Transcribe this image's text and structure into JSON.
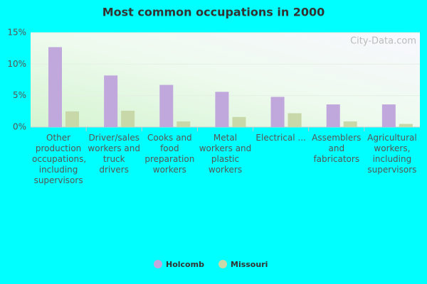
{
  "chart_data": {
    "type": "bar",
    "title": "Most common occupations in 2000",
    "watermark": "City-Data.com",
    "categories": [
      "Other production occupations, including supervisors",
      "Driver/sales workers and truck drivers",
      "Cooks and food preparation workers",
      "Metal workers and plastic workers",
      "Electrical ...",
      "Assemblers and fabricators",
      "Agricultural workers, including supervisors"
    ],
    "series": [
      {
        "name": "Holcomb",
        "color": "#c0a8dc",
        "values": [
          12.7,
          8.2,
          6.7,
          5.6,
          4.8,
          3.6,
          3.6
        ]
      },
      {
        "name": "Missouri",
        "color": "#c8d8a8",
        "values": [
          2.5,
          2.6,
          0.9,
          1.6,
          2.2,
          0.9,
          0.5
        ]
      }
    ],
    "ylim": [
      0,
      15
    ],
    "yticks": [
      {
        "value": 0,
        "label": "0%"
      },
      {
        "value": 5,
        "label": "5%"
      },
      {
        "value": 10,
        "label": "10%"
      },
      {
        "value": 15,
        "label": "15%"
      }
    ],
    "grid": true
  }
}
